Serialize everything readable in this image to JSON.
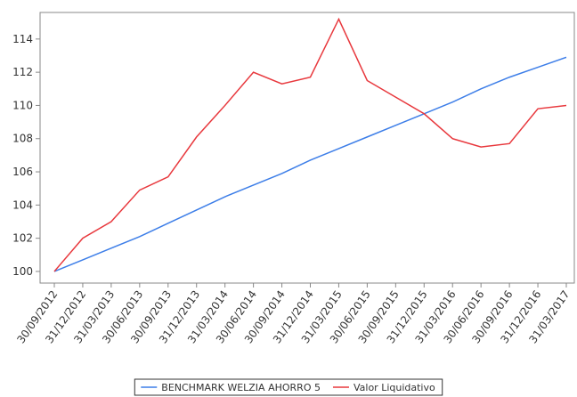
{
  "chart_data": {
    "type": "line",
    "categories": [
      "30/09/2012",
      "31/12/2012",
      "31/03/2013",
      "30/06/2013",
      "30/09/2013",
      "31/12/2013",
      "31/03/2014",
      "30/06/2014",
      "30/09/2014",
      "31/12/2014",
      "31/03/2015",
      "30/06/2015",
      "30/09/2015",
      "31/12/2015",
      "31/03/2016",
      "30/06/2016",
      "30/09/2016",
      "31/12/2016",
      "31/03/2017"
    ],
    "series": [
      {
        "name": "BENCHMARK WELZIA AHORRO 5",
        "color": "#3d7ee8",
        "values": [
          100,
          100.7,
          101.4,
          102.1,
          102.9,
          103.7,
          104.5,
          105.2,
          105.9,
          106.7,
          107.4,
          108.1,
          108.8,
          109.5,
          110.2,
          111.0,
          111.7,
          112.3,
          112.9
        ]
      },
      {
        "name": "Valor Liquidativo",
        "color": "#e8383d",
        "values": [
          100,
          102.0,
          103.0,
          104.9,
          105.7,
          108.1,
          110.0,
          112.0,
          111.3,
          111.7,
          115.2,
          111.5,
          110.5,
          109.5,
          108.0,
          107.5,
          107.7,
          109.8,
          110.0
        ]
      }
    ],
    "ylim": [
      99.3,
      115.6
    ],
    "yticks": [
      100,
      102,
      104,
      106,
      108,
      110,
      112,
      114
    ],
    "grid": false
  }
}
